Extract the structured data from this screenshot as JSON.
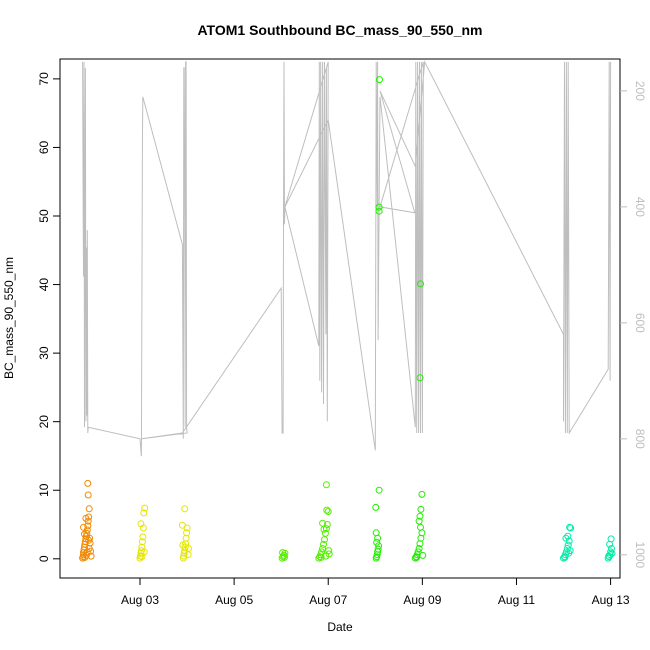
{
  "chart_data": {
    "type": "scatter",
    "title": "ATOM1 Southbound BC_mass_90_550_nm",
    "xlabel": "Date",
    "ylabel": "BC_mass_90_550_nm",
    "x_axis": {
      "unit": "days since Aug 01",
      "range": [
        1.3,
        13.2
      ],
      "ticks": [
        {
          "value": 3,
          "label": "Aug 03"
        },
        {
          "value": 5,
          "label": "Aug 05"
        },
        {
          "value": 7,
          "label": "Aug 07"
        },
        {
          "value": 9,
          "label": "Aug 09"
        },
        {
          "value": 11,
          "label": "Aug 11"
        },
        {
          "value": 13,
          "label": "Aug 13"
        }
      ]
    },
    "y_axis": {
      "range": [
        -2.8,
        72.9
      ],
      "ticks": [
        0,
        10,
        20,
        30,
        40,
        50,
        60,
        70
      ]
    },
    "y2_axis": {
      "range": [
        1040,
        145
      ],
      "ticks": [
        200,
        400,
        600,
        800,
        1000
      ],
      "color": "#bebebe",
      "orientation": "inverted"
    },
    "grid": false,
    "legend": "none",
    "marker": "open-circle",
    "series": [
      {
        "color": "#f08a00",
        "points": [
          [
            1.78,
            0.1
          ],
          [
            1.79,
            0.3
          ],
          [
            1.8,
            0.6
          ],
          [
            1.8,
            0.9
          ],
          [
            1.81,
            1.3
          ],
          [
            1.82,
            1.7
          ],
          [
            1.83,
            2.1
          ],
          [
            1.84,
            2.5
          ],
          [
            1.85,
            2.9
          ],
          [
            1.86,
            3.3
          ],
          [
            1.87,
            3.7
          ],
          [
            1.88,
            4.2
          ],
          [
            1.89,
            4.8
          ],
          [
            1.9,
            5.5
          ],
          [
            1.91,
            6.1
          ],
          [
            1.92,
            7.3
          ],
          [
            1.9,
            9.3
          ],
          [
            1.89,
            11.0
          ],
          [
            1.83,
            0.2
          ],
          [
            1.86,
            0.5
          ],
          [
            1.88,
            1.0
          ],
          [
            1.92,
            1.5
          ],
          [
            1.94,
            2.3
          ],
          [
            1.93,
            3.0
          ],
          [
            1.82,
            3.6
          ],
          [
            1.85,
            5.9
          ],
          [
            1.95,
            1.1
          ],
          [
            1.96,
            0.4
          ],
          [
            1.8,
            4.6
          ],
          [
            1.91,
            2.7
          ]
        ]
      },
      {
        "color": "#e5e600",
        "points": [
          [
            3.0,
            0.1
          ],
          [
            3.01,
            0.4
          ],
          [
            3.02,
            0.8
          ],
          [
            3.03,
            1.2
          ],
          [
            3.04,
            1.7
          ],
          [
            3.05,
            2.5
          ],
          [
            3.06,
            3.2
          ],
          [
            3.07,
            4.5
          ],
          [
            3.02,
            5.1
          ],
          [
            3.08,
            6.7
          ],
          [
            3.1,
            7.4
          ],
          [
            3.04,
            0.3
          ],
          [
            3.09,
            1.0
          ],
          [
            3.92,
            0.1
          ],
          [
            3.93,
            0.4
          ],
          [
            3.94,
            0.8
          ],
          [
            3.95,
            1.2
          ],
          [
            3.96,
            1.7
          ],
          [
            3.97,
            2.2
          ],
          [
            3.98,
            3.0
          ],
          [
            3.99,
            3.8
          ],
          [
            4.0,
            4.5
          ],
          [
            3.9,
            4.9
          ],
          [
            3.95,
            7.3
          ],
          [
            4.02,
            0.6
          ],
          [
            4.03,
            1.5
          ],
          [
            3.91,
            2.0
          ]
        ]
      },
      {
        "color": "#55ee00",
        "points": [
          [
            6.02,
            0.1
          ],
          [
            6.04,
            0.3
          ],
          [
            6.06,
            0.5
          ],
          [
            6.08,
            0.8
          ],
          [
            6.03,
            0.9
          ],
          [
            6.07,
            0.2
          ],
          [
            6.8,
            0.1
          ],
          [
            6.82,
            0.3
          ],
          [
            6.84,
            0.6
          ],
          [
            6.86,
            1.0
          ],
          [
            6.88,
            1.5
          ],
          [
            6.9,
            2.1
          ],
          [
            6.92,
            2.8
          ],
          [
            6.94,
            3.7
          ],
          [
            6.96,
            4.4
          ],
          [
            6.98,
            5.0
          ],
          [
            6.88,
            5.2
          ],
          [
            7.0,
            6.9
          ],
          [
            6.97,
            7.1
          ],
          [
            6.96,
            10.8
          ],
          [
            6.85,
            0.2
          ],
          [
            6.95,
            0.4
          ],
          [
            7.02,
            0.7
          ],
          [
            7.01,
            1.2
          ],
          [
            6.91,
            4.3
          ]
        ]
      },
      {
        "color": "#22ee00",
        "points": [
          [
            8.02,
            0.1
          ],
          [
            8.03,
            0.3
          ],
          [
            8.04,
            0.6
          ],
          [
            8.05,
            1.0
          ],
          [
            8.06,
            1.4
          ],
          [
            8.07,
            1.9
          ],
          [
            8.03,
            2.4
          ],
          [
            8.05,
            3.0
          ],
          [
            8.02,
            3.8
          ],
          [
            8.01,
            7.5
          ],
          [
            8.08,
            10.0
          ],
          [
            8.08,
            50.7
          ],
          [
            8.08,
            51.3
          ],
          [
            8.09,
            69.9
          ],
          [
            8.85,
            0.1
          ],
          [
            8.87,
            0.3
          ],
          [
            8.89,
            0.6
          ],
          [
            8.91,
            1.0
          ],
          [
            8.93,
            1.5
          ],
          [
            8.95,
            2.2
          ],
          [
            8.97,
            3.0
          ],
          [
            8.99,
            3.8
          ],
          [
            8.96,
            4.6
          ],
          [
            8.93,
            5.5
          ],
          [
            8.95,
            6.2
          ],
          [
            8.97,
            7.2
          ],
          [
            8.99,
            9.4
          ],
          [
            8.95,
            26.4
          ],
          [
            8.96,
            40.1
          ],
          [
            8.88,
            0.2
          ],
          [
            9.01,
            0.5
          ]
        ]
      },
      {
        "color": "#00eeaa",
        "points": [
          [
            12.0,
            0.1
          ],
          [
            12.02,
            0.3
          ],
          [
            12.04,
            0.6
          ],
          [
            12.06,
            1.0
          ],
          [
            12.08,
            1.5
          ],
          [
            12.1,
            2.0
          ],
          [
            12.12,
            2.6
          ],
          [
            12.05,
            3.0
          ],
          [
            12.09,
            3.3
          ],
          [
            12.13,
            4.6
          ],
          [
            12.15,
            4.5
          ],
          [
            12.03,
            0.2
          ],
          [
            12.11,
            0.8
          ],
          [
            12.14,
            1.2
          ],
          [
            12.95,
            0.1
          ],
          [
            12.97,
            0.3
          ],
          [
            12.99,
            0.6
          ],
          [
            13.0,
            1.0
          ],
          [
            13.02,
            1.5
          ],
          [
            12.98,
            2.1
          ],
          [
            13.01,
            2.9
          ],
          [
            12.96,
            0.4
          ],
          [
            13.03,
            0.8
          ]
        ]
      }
    ],
    "pressure_trace": {
      "color": "#bebebe",
      "axis": "y2",
      "points": [
        [
          1.78,
          150
        ],
        [
          1.79,
          380
        ],
        [
          1.8,
          520
        ],
        [
          1.81,
          150
        ],
        [
          1.82,
          780
        ],
        [
          1.83,
          420
        ],
        [
          1.84,
          160
        ],
        [
          1.85,
          770
        ],
        [
          1.86,
          470
        ],
        [
          1.87,
          760
        ],
        [
          1.88,
          440
        ],
        [
          1.89,
          790
        ],
        [
          1.9,
          780
        ],
        [
          3.0,
          800
        ],
        [
          3.02,
          820
        ],
        [
          3.03,
          830
        ],
        [
          3.05,
          300
        ],
        [
          3.06,
          210
        ],
        [
          3.9,
          465
        ],
        [
          3.92,
          800
        ],
        [
          3.93,
          160
        ],
        [
          3.94,
          160
        ],
        [
          3.95,
          380
        ],
        [
          3.96,
          780
        ],
        [
          3.97,
          150
        ],
        [
          3.98,
          150
        ],
        [
          3.99,
          780
        ],
        [
          4.0,
          790
        ],
        [
          3.04,
          800
        ],
        [
          3.9,
          790
        ],
        [
          6.0,
          540
        ],
        [
          6.02,
          790
        ],
        [
          6.04,
          790
        ],
        [
          6.05,
          420
        ],
        [
          6.06,
          150
        ],
        [
          6.07,
          430
        ],
        [
          6.08,
          400
        ],
        [
          6.8,
          640
        ],
        [
          6.81,
          150
        ],
        [
          6.82,
          700
        ],
        [
          6.84,
          150
        ],
        [
          6.86,
          720
        ],
        [
          6.88,
          150
        ],
        [
          6.9,
          740
        ],
        [
          6.92,
          150
        ],
        [
          6.95,
          620
        ],
        [
          6.96,
          160
        ],
        [
          6.98,
          770
        ],
        [
          7.0,
          150
        ],
        [
          6.08,
          400
        ],
        [
          7.0,
          250
        ],
        [
          8.0,
          820
        ],
        [
          8.02,
          150
        ],
        [
          8.04,
          400
        ],
        [
          8.05,
          150
        ],
        [
          8.06,
          630
        ],
        [
          8.08,
          400
        ],
        [
          8.1,
          210
        ],
        [
          8.85,
          780
        ],
        [
          8.86,
          150
        ],
        [
          8.88,
          790
        ],
        [
          8.9,
          150
        ],
        [
          8.92,
          790
        ],
        [
          8.94,
          150
        ],
        [
          8.96,
          790
        ],
        [
          8.98,
          150
        ],
        [
          9.0,
          790
        ],
        [
          9.02,
          150
        ],
        [
          8.1,
          400
        ],
        [
          8.84,
          410
        ],
        [
          8.1,
          200
        ],
        [
          8.85,
          330
        ],
        [
          9.05,
          150
        ],
        [
          12.0,
          620
        ],
        [
          12.0,
          770
        ],
        [
          12.02,
          150
        ],
        [
          12.04,
          790
        ],
        [
          12.06,
          150
        ],
        [
          12.08,
          790
        ],
        [
          12.1,
          150
        ],
        [
          12.12,
          790
        ],
        [
          12.95,
          680
        ],
        [
          12.97,
          150
        ],
        [
          12.99,
          700
        ],
        [
          13.0,
          150
        ]
      ]
    }
  }
}
